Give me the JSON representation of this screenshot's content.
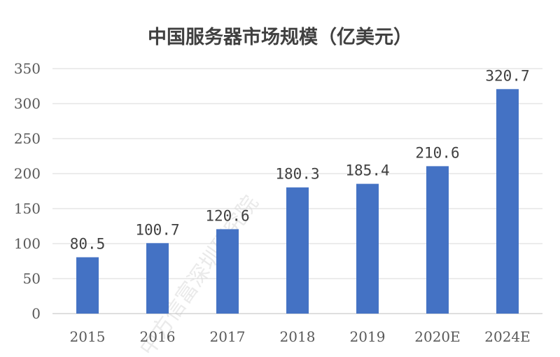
{
  "chart_data": {
    "type": "bar",
    "title": "中国服务器市场规模（亿美元）",
    "categories": [
      "2015",
      "2016",
      "2017",
      "2018",
      "2019",
      "2020E",
      "2024E"
    ],
    "values": [
      80.5,
      100.7,
      120.6,
      180.3,
      185.4,
      210.6,
      320.7
    ],
    "value_labels": [
      "80.5",
      "100.7",
      "120.6",
      "180.3",
      "185.4",
      "210.6",
      "320.7"
    ],
    "ylim": [
      0,
      350
    ],
    "yticks": [
      "0",
      "50",
      "100",
      "150",
      "200",
      "250",
      "300",
      "350"
    ],
    "grid": true,
    "legend": "none",
    "bar_color": "#4472c4"
  },
  "watermark": "中方信富深圳研究院"
}
